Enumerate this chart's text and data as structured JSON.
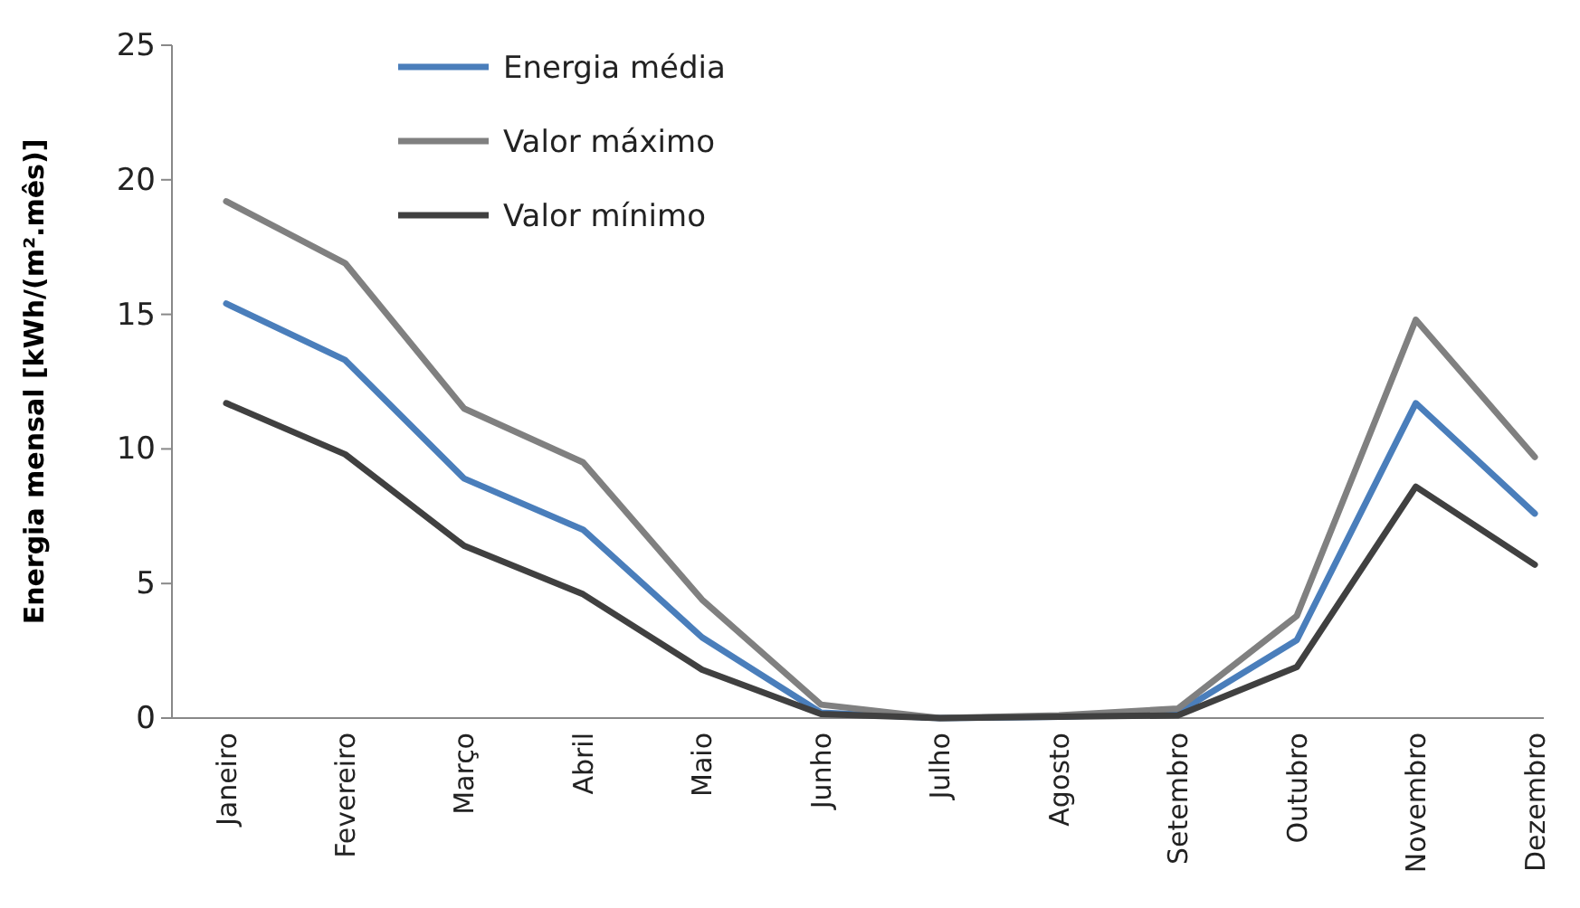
{
  "chart_data": {
    "type": "line",
    "ylabel": "Energia mensal [kWh/(m².mês)]",
    "categories": [
      "Janeiro",
      "Fevereiro",
      "Março",
      "Abril",
      "Maio",
      "Junho",
      "Julho",
      "Agosto",
      "Setembro",
      "Outubro",
      "Novembro",
      "Dezembro"
    ],
    "series": [
      {
        "name": "Energia média",
        "color": "#4a7ebb",
        "values": [
          15.4,
          13.3,
          8.9,
          7.0,
          3.0,
          0.2,
          0,
          0.05,
          0.2,
          2.9,
          11.7,
          7.6
        ]
      },
      {
        "name": "Valor máximo",
        "color": "#808080",
        "values": [
          19.2,
          16.9,
          11.5,
          9.5,
          4.4,
          0.5,
          0,
          0.1,
          0.35,
          3.8,
          14.8,
          9.7
        ]
      },
      {
        "name": "Valor mínimo",
        "color": "#404040",
        "values": [
          11.7,
          9.8,
          6.4,
          4.6,
          1.8,
          0.15,
          0,
          0.05,
          0.1,
          1.9,
          8.6,
          5.7
        ]
      }
    ],
    "ylim": [
      0,
      25
    ],
    "yticks": [
      0,
      5,
      10,
      15,
      20,
      25
    ],
    "grid": false,
    "legend": "top left",
    "marker": "none",
    "line_style": "solid"
  }
}
